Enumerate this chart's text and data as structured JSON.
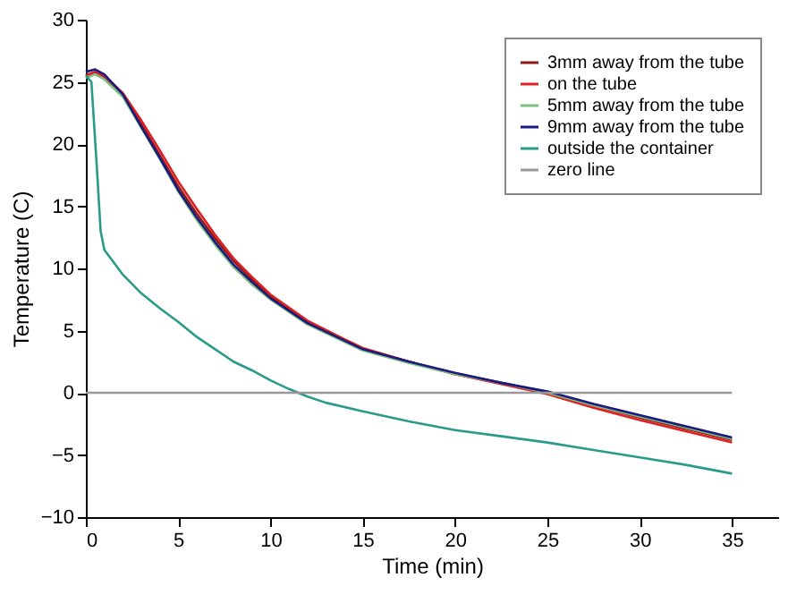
{
  "chart_data": {
    "type": "line",
    "xlabel": "Time (min)",
    "ylabel": "Temperature (C)",
    "x": [
      0,
      0.5,
      1,
      2,
      3,
      4,
      5,
      6,
      7,
      8,
      9,
      10,
      12,
      14,
      15,
      17.5,
      20,
      22.5,
      25,
      27.5,
      30,
      32.5,
      35
    ],
    "series": [
      {
        "name": "3mm away from the tube",
        "color": "#8b1a1a",
        "values": [
          25.5,
          25.8,
          25.4,
          24,
          21.6,
          19.1,
          16.6,
          14.4,
          12.4,
          10.6,
          9.1,
          7.8,
          5.7,
          4.2,
          3.5,
          2.5,
          1.5,
          0.8,
          0,
          -1,
          -2,
          -2.9,
          -3.8
        ]
      },
      {
        "name": "on the tube",
        "color": "#e02020",
        "values": [
          25.5,
          25.8,
          25.5,
          24.1,
          21.9,
          19.5,
          17,
          14.8,
          12.7,
          10.8,
          9.3,
          7.9,
          5.8,
          4.3,
          3.6,
          2.5,
          1.5,
          0.7,
          -0.1,
          -1.2,
          -2.2,
          -3.1,
          -4
        ]
      },
      {
        "name": "5mm away from the tube",
        "color": "#7fbf7f",
        "values": [
          25.3,
          25.6,
          25.2,
          23.8,
          21.3,
          18.8,
          16.2,
          13.9,
          11.9,
          10.1,
          8.7,
          7.5,
          5.5,
          4.1,
          3.4,
          2.4,
          1.5,
          0.8,
          0,
          -1,
          -1.9,
          -2.8,
          -3.7
        ]
      },
      {
        "name": "9mm away from the tube",
        "color": "#1a1a80",
        "values": [
          25.8,
          26,
          25.6,
          24,
          21.4,
          18.9,
          16.3,
          14.1,
          12.1,
          10.3,
          8.9,
          7.6,
          5.6,
          4.2,
          3.5,
          2.5,
          1.6,
          0.8,
          0.1,
          -0.9,
          -1.8,
          -2.7,
          -3.6
        ]
      },
      {
        "name": "outside the container",
        "color": "#2a9a8a",
        "x": [
          0,
          0.3,
          0.6,
          0.8,
          1,
          1.5,
          2,
          3,
          4,
          5,
          6,
          7,
          8,
          9,
          10,
          11,
          12,
          13,
          15,
          17.5,
          20,
          22.5,
          25,
          27.5,
          30,
          32.5,
          35
        ],
        "values": [
          25.5,
          25,
          18,
          13,
          11.5,
          10.5,
          9.5,
          8,
          6.8,
          5.7,
          4.5,
          3.5,
          2.5,
          1.8,
          1,
          0.3,
          -0.3,
          -0.8,
          -1.5,
          -2.3,
          -3,
          -3.5,
          -4,
          -4.6,
          -5.2,
          -5.8,
          -6.5
        ]
      },
      {
        "name": "zero line",
        "color": "#999999",
        "x": [
          0,
          35
        ],
        "values": [
          0,
          0
        ]
      }
    ],
    "xlim": [
      0,
      37.5
    ],
    "xticks": [
      0,
      5,
      10,
      15,
      20,
      25,
      30,
      35
    ],
    "ylim": [
      -10,
      30
    ],
    "yticks": [
      -10,
      -5,
      0,
      5,
      10,
      15,
      20,
      25,
      30
    ],
    "grid": false,
    "legend": "top right",
    "marker": "none",
    "line_style": "solid"
  }
}
